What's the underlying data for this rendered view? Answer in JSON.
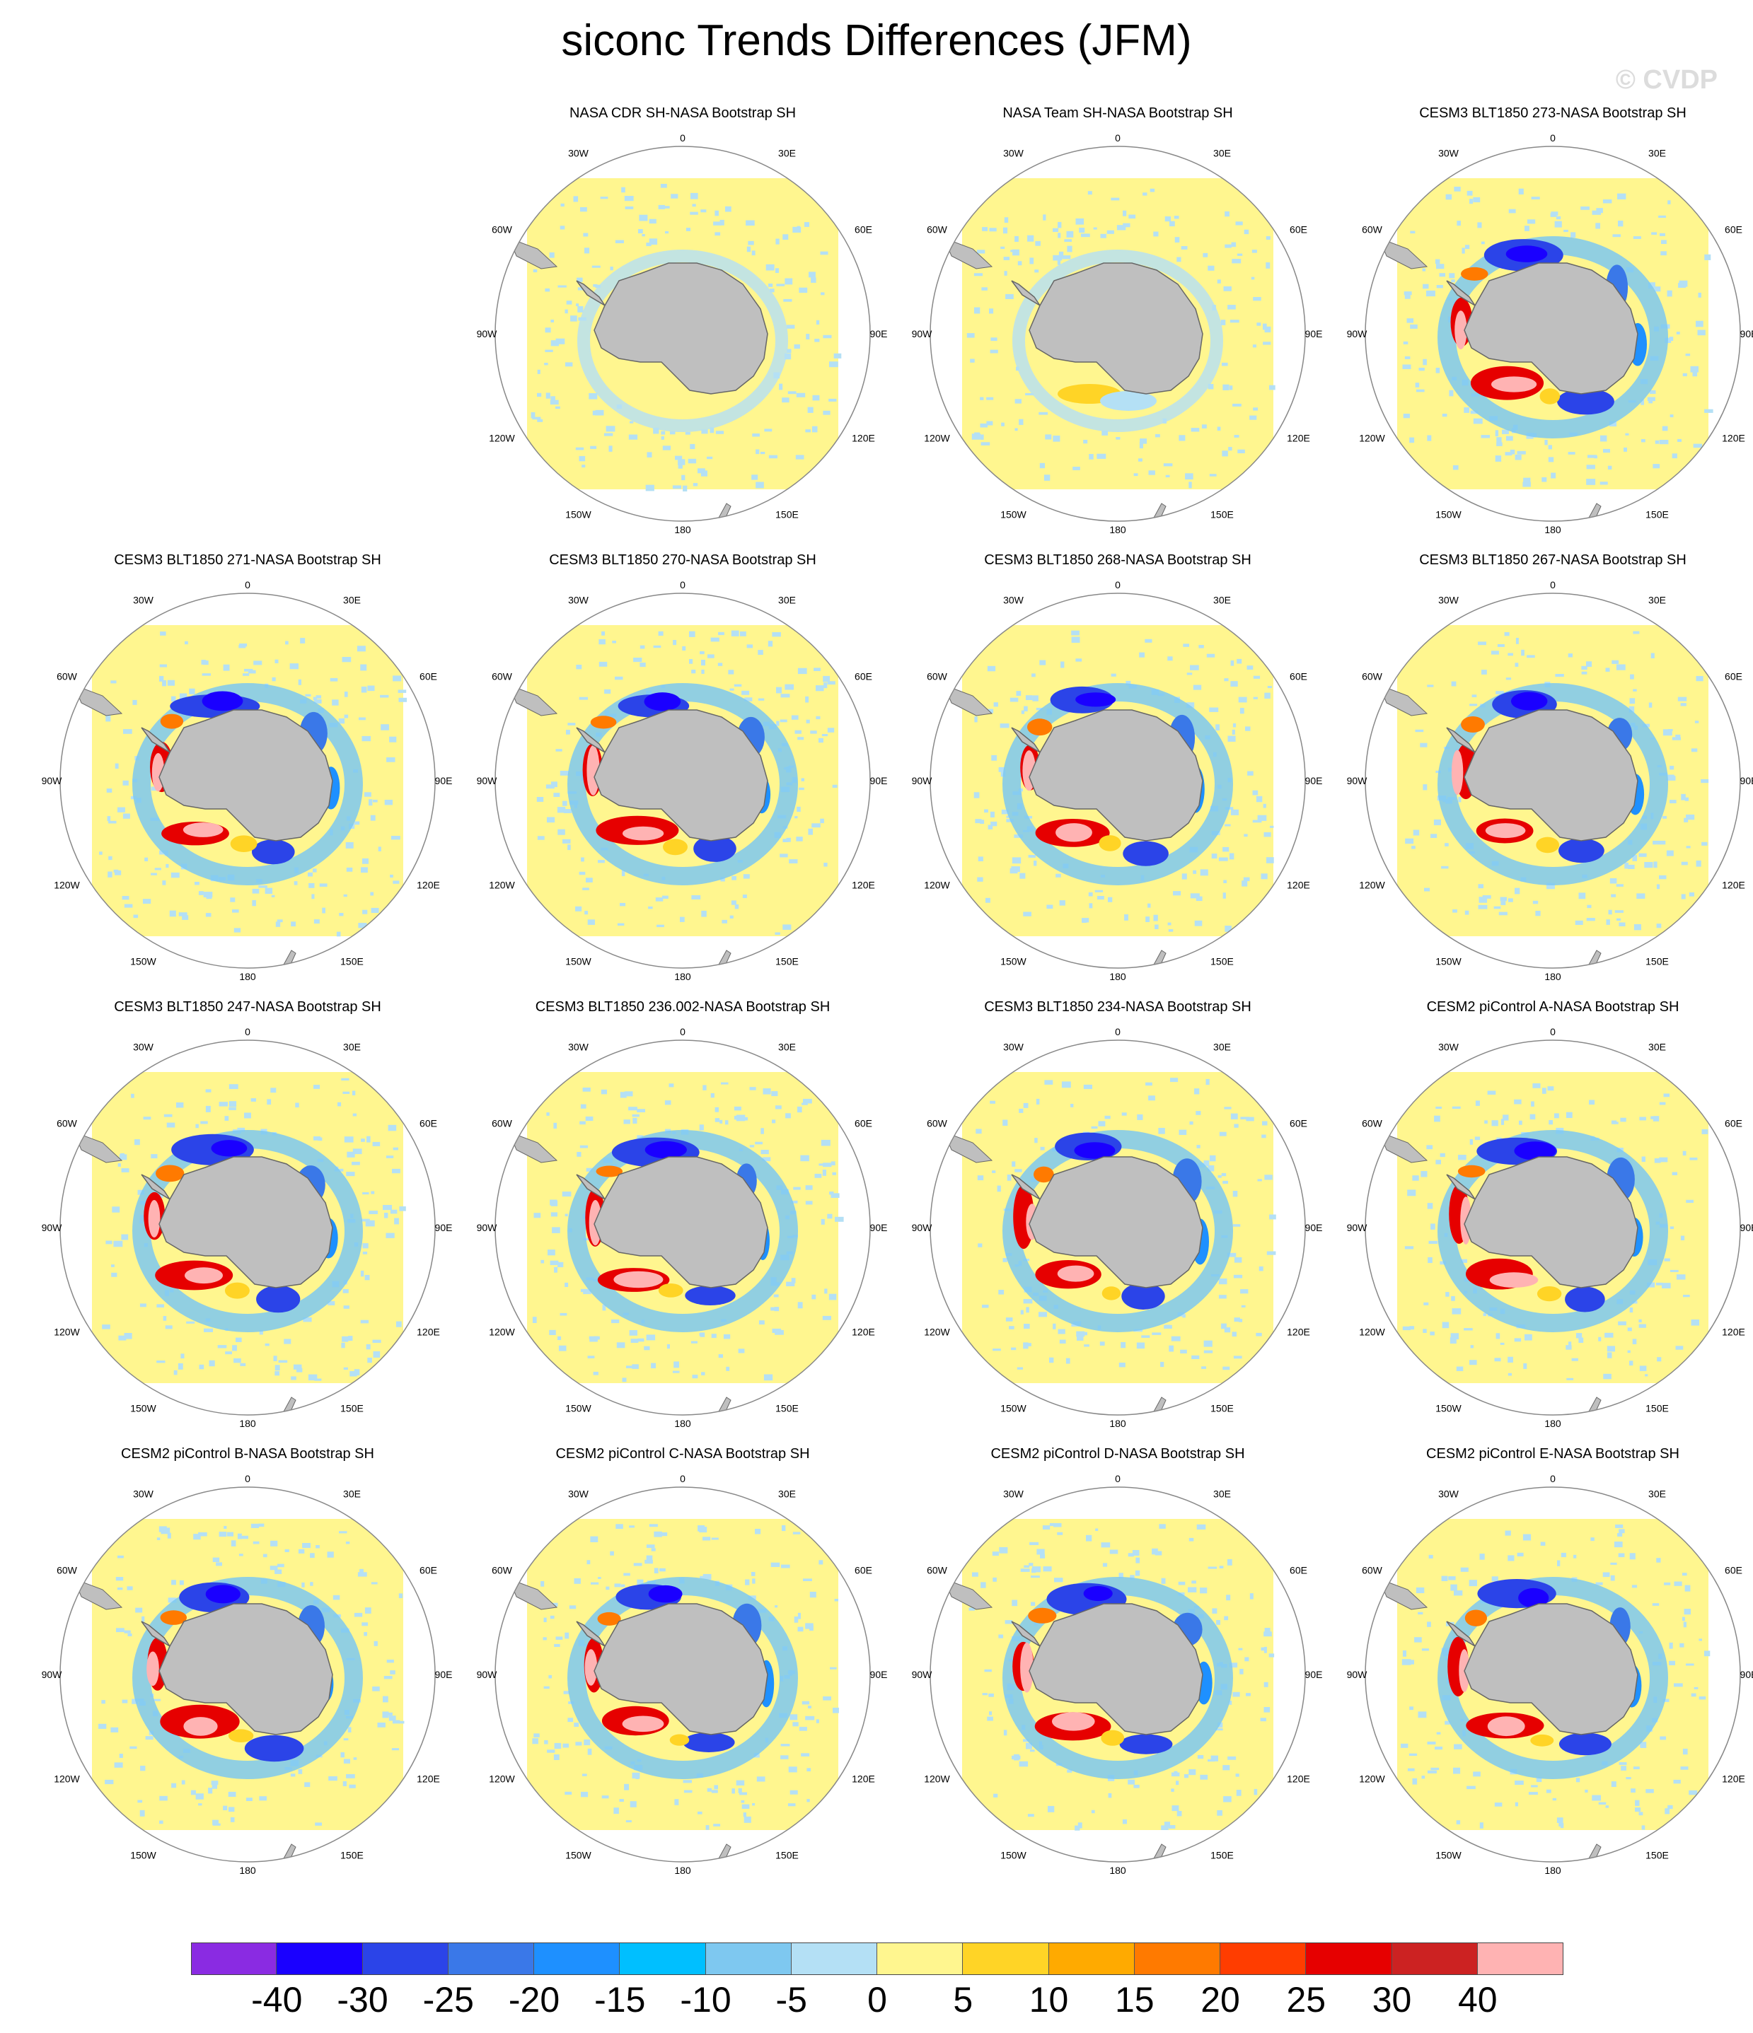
{
  "title": "siconc Trends Differences (JFM)",
  "copyright": "© CVDP",
  "panels": [
    {
      "title": "NASA CDR SH-NASA Bootstrap SH",
      "pattern": "obs1"
    },
    {
      "title": "NASA Team SH-NASA Bootstrap SH",
      "pattern": "obs2"
    },
    {
      "title": "CESM3 BLT1850 273-NASA Bootstrap SH",
      "pattern": "model"
    },
    {
      "title": "CESM3 BLT1850 271-NASA Bootstrap SH",
      "pattern": "model"
    },
    {
      "title": "CESM3 BLT1850 270-NASA Bootstrap SH",
      "pattern": "model"
    },
    {
      "title": "CESM3 BLT1850 268-NASA Bootstrap SH",
      "pattern": "model"
    },
    {
      "title": "CESM3 BLT1850 267-NASA Bootstrap SH",
      "pattern": "model"
    },
    {
      "title": "CESM3 BLT1850 247-NASA Bootstrap SH",
      "pattern": "model"
    },
    {
      "title": "CESM3 BLT1850 236.002-NASA Bootstrap SH",
      "pattern": "model"
    },
    {
      "title": "CESM3 BLT1850 234-NASA Bootstrap SH",
      "pattern": "model"
    },
    {
      "title": "CESM2 piControl A-NASA Bootstrap SH",
      "pattern": "model"
    },
    {
      "title": "CESM2 piControl B-NASA Bootstrap SH",
      "pattern": "model"
    },
    {
      "title": "CESM2 piControl C-NASA Bootstrap SH",
      "pattern": "model"
    },
    {
      "title": "CESM2 piControl D-NASA Bootstrap SH",
      "pattern": "model"
    },
    {
      "title": "CESM2 piControl E-NASA Bootstrap SH",
      "pattern": "model"
    }
  ],
  "longitude_labels": [
    "0",
    "30E",
    "60E",
    "90E",
    "120E",
    "150E",
    "180",
    "150W",
    "120W",
    "90W",
    "60W",
    "30W"
  ],
  "colorbar": {
    "colors": [
      "#8a2be2",
      "#1a00ff",
      "#2b44e8",
      "#3a78e8",
      "#1e90ff",
      "#00bfff",
      "#7ec8f0",
      "#b4e0f5",
      "#fff68f",
      "#ffd426",
      "#ffaa00",
      "#ff7a00",
      "#ff3d00",
      "#e60000",
      "#cc2222",
      "#ffb3b3"
    ],
    "labels": [
      "-40",
      "-30",
      "-25",
      "-20",
      "-15",
      "-10",
      "-5",
      "0",
      "5",
      "10",
      "15",
      "20",
      "25",
      "30",
      "40"
    ]
  },
  "colors": {
    "land": "#bfbfbf",
    "background_field": "#fff68f",
    "coast": "#666666"
  }
}
